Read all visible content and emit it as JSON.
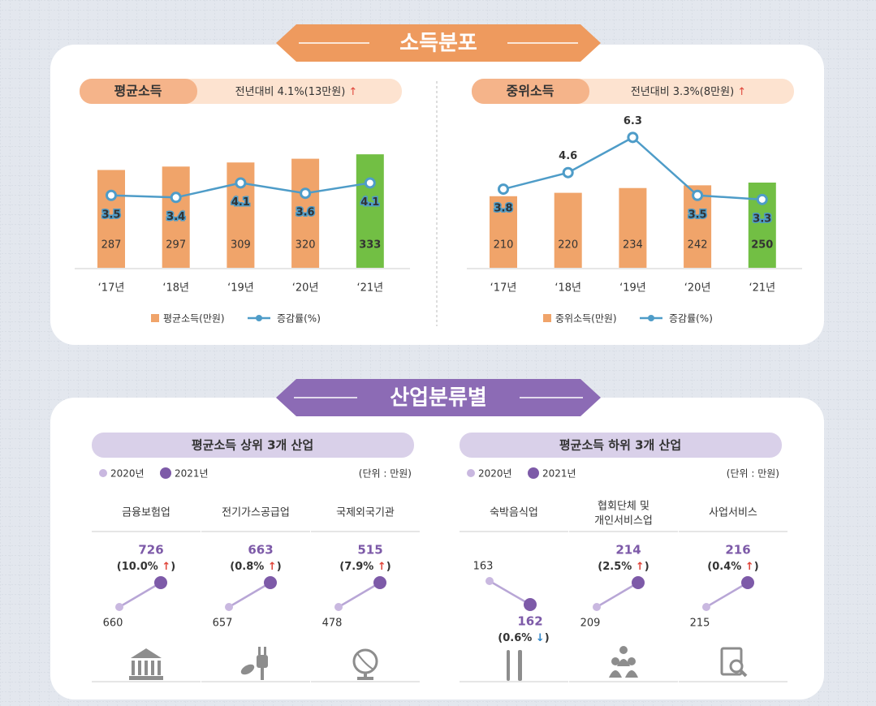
{
  "income_section": {
    "title": "소득분포"
  },
  "chart_data": [
    {
      "type": "bar_line",
      "title": "평균소득",
      "subtitle": "전년대비 4.1%(13만원) ↑",
      "categories": [
        "‘17년",
        "‘18년",
        "‘19년",
        "‘20년",
        "‘21년"
      ],
      "series": [
        {
          "name": "평균소득(만원)",
          "type": "bar",
          "color": "#f0a46a",
          "highlight_color": "#72bf44",
          "values": [
            287,
            297,
            309,
            320,
            333
          ]
        },
        {
          "name": "증감률(%)",
          "type": "line",
          "color": "#4e9cc8",
          "values": [
            3.5,
            3.4,
            4.1,
            3.6,
            4.1
          ]
        }
      ]
    },
    {
      "type": "bar_line",
      "title": "중위소득",
      "subtitle": "전년대비 3.3%(8만원) ↑",
      "categories": [
        "‘17년",
        "‘18년",
        "‘19년",
        "‘20년",
        "‘21년"
      ],
      "series": [
        {
          "name": "중위소득(만원)",
          "type": "bar",
          "color": "#f0a46a",
          "highlight_color": "#72bf44",
          "values": [
            210,
            220,
            234,
            242,
            250
          ]
        },
        {
          "name": "증감률(%)",
          "type": "line",
          "color": "#4e9cc8",
          "values": [
            3.8,
            4.6,
            6.3,
            3.5,
            3.3
          ]
        }
      ]
    }
  ],
  "industry_section": {
    "title": "산업분류별",
    "legend": [
      "2020년",
      "2021년"
    ],
    "legend_colors": [
      "#c9b8e0",
      "#7d5aa8"
    ],
    "unit": "(단위 : 만원)",
    "panels": [
      {
        "title": "평균소득 상위 3개 산업",
        "items": [
          {
            "name_lines": [
              "금융보험업"
            ],
            "values": [
              660,
              726
            ],
            "change": "(10.0% ↑)"
          },
          {
            "name_lines": [
              "전기가스공급업"
            ],
            "values": [
              657,
              663
            ],
            "change": "(0.8% ↑)"
          },
          {
            "name_lines": [
              "국제외국기관"
            ],
            "values": [
              478,
              515
            ],
            "change": "(7.9% ↑)"
          }
        ]
      },
      {
        "title": "평균소득 하위 3개 산업",
        "items": [
          {
            "name_lines": [
              "숙박음식업"
            ],
            "values": [
              163,
              162
            ],
            "change": "(0.6% ↓)"
          },
          {
            "name_lines": [
              "협회단체 및",
              "개인서비스업"
            ],
            "values": [
              209,
              214
            ],
            "change": "(2.5% ↑)"
          },
          {
            "name_lines": [
              "사업서비스"
            ],
            "values": [
              215,
              216
            ],
            "change": "(0.4% ↑)"
          }
        ]
      }
    ]
  }
}
